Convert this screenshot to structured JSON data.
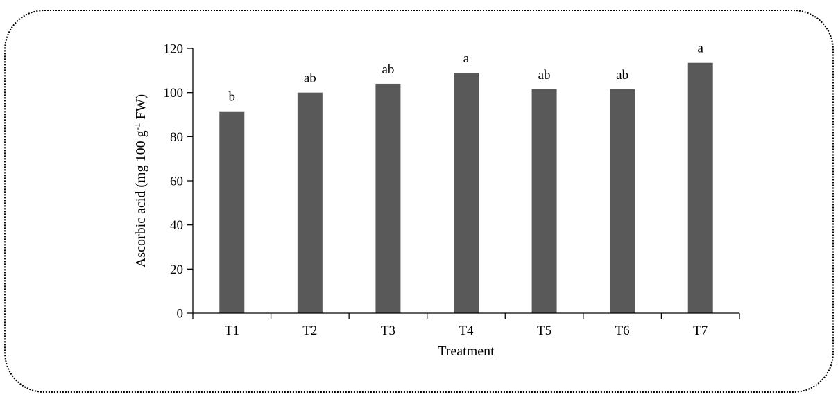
{
  "chart_data": {
    "type": "bar",
    "categories": [
      "T1",
      "T2",
      "T3",
      "T4",
      "T5",
      "T6",
      "T7"
    ],
    "values": [
      91.5,
      100,
      104,
      109,
      101.5,
      101.5,
      113.5
    ],
    "data_labels": [
      "b",
      "ab",
      "ab",
      "a",
      "ab",
      "ab",
      "a"
    ],
    "xlabel": "Treatment",
    "ylabel": {
      "pre": "Ascorbic acid (mg 100 g",
      "sup": "-1",
      "post": " FW)"
    },
    "ylim": [
      0,
      120
    ],
    "yticks": [
      "0",
      "20",
      "40",
      "60",
      "80",
      "100",
      "120"
    ],
    "bar_color": "#595959",
    "grid": false,
    "legend": "none"
  }
}
